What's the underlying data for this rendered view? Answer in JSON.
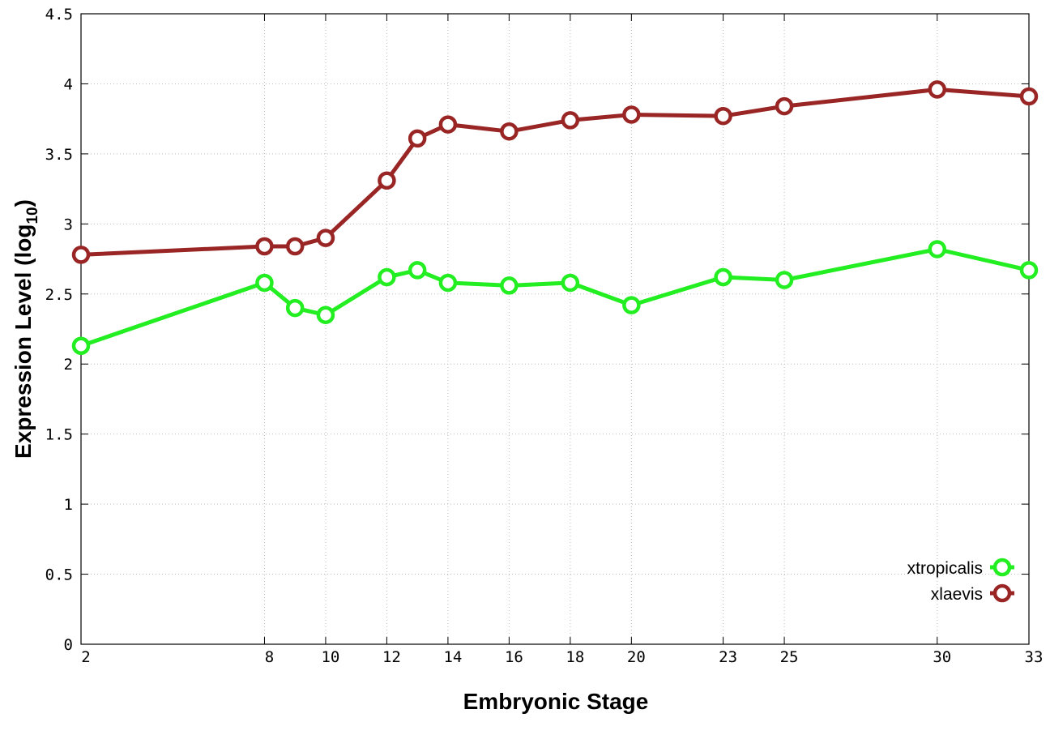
{
  "chart_data": {
    "type": "line",
    "xlabel": "Embryonic Stage",
    "ylabel_main": "Expression Level (log",
    "ylabel_sub": "10",
    "ylabel_close": ")",
    "xlim": [
      2,
      33
    ],
    "ylim": [
      0,
      4.5
    ],
    "x_ticks": [
      2,
      8,
      10,
      12,
      14,
      16,
      18,
      20,
      23,
      25,
      30,
      33
    ],
    "y_ticks": [
      0,
      0.5,
      1,
      1.5,
      2,
      2.5,
      3,
      3.5,
      4,
      4.5
    ],
    "y_tick_labels": [
      "0",
      "0.5",
      "1",
      "1.5",
      "2",
      "2.5",
      "3",
      "3.5",
      "4",
      "4.5"
    ],
    "grid": true,
    "legend_position": "bottom-right",
    "x": [
      2,
      8,
      9,
      10,
      12,
      13,
      14,
      16,
      18,
      20,
      23,
      25,
      30,
      33
    ],
    "series": [
      {
        "name": "xtropicalis",
        "color": "#22ee22",
        "values": [
          2.13,
          2.58,
          2.4,
          2.35,
          2.62,
          2.67,
          2.58,
          2.56,
          2.58,
          2.42,
          2.62,
          2.6,
          2.82,
          2.67
        ]
      },
      {
        "name": "xlaevis",
        "color": "#992525",
        "values": [
          2.78,
          2.84,
          2.84,
          2.9,
          3.31,
          3.61,
          3.71,
          3.66,
          3.74,
          3.78,
          3.77,
          3.84,
          3.96,
          3.91
        ]
      }
    ]
  }
}
